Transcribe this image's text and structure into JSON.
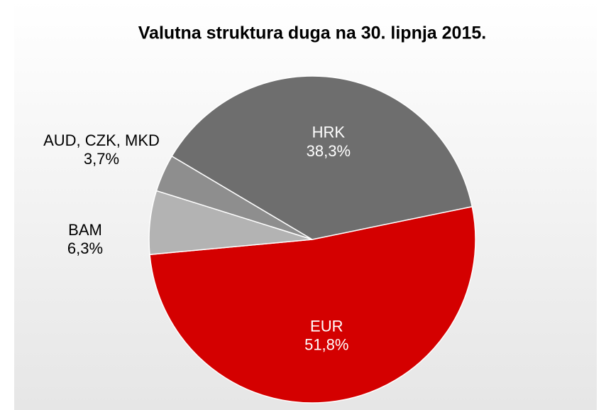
{
  "chart_data": {
    "type": "pie",
    "title": "Valutna struktura duga na 30. lipnja 2015.",
    "categories": [
      "EUR",
      "BAM",
      "AUD, CZK, MKD",
      "HRK"
    ],
    "values": [
      51.8,
      6.3,
      3.7,
      38.3
    ],
    "value_labels": [
      "51,8%",
      "6,3%",
      "3,7%",
      "38,3%"
    ],
    "colors": [
      "#d40000",
      "#b3b3b3",
      "#8e8e8e",
      "#6e6e6e"
    ]
  }
}
